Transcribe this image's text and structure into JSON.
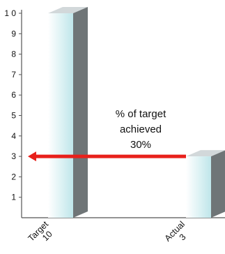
{
  "chart_data": {
    "type": "bar",
    "categories": [
      "Target",
      "Actual"
    ],
    "values": [
      10,
      3
    ],
    "category_value_labels": [
      "10",
      "3"
    ],
    "ylim": [
      0,
      10
    ],
    "yticks": [
      "1 0",
      "9",
      "8",
      "7",
      "6",
      "5",
      "4",
      "3",
      "2",
      "1"
    ],
    "grid": false,
    "legend": "none",
    "style": "3d",
    "annotation": {
      "lines": [
        "% of target",
        "achieved",
        "30%"
      ],
      "arrow_from_value": 3,
      "arrow_direction": "left"
    },
    "colors": {
      "bar_front_light": "#ffffff",
      "bar_front_dark": "#bfe6ea",
      "bar_side": "#6f7577",
      "bar_top": "#d2d8da",
      "arrow": "#e8201b",
      "axis": "#555555"
    }
  }
}
